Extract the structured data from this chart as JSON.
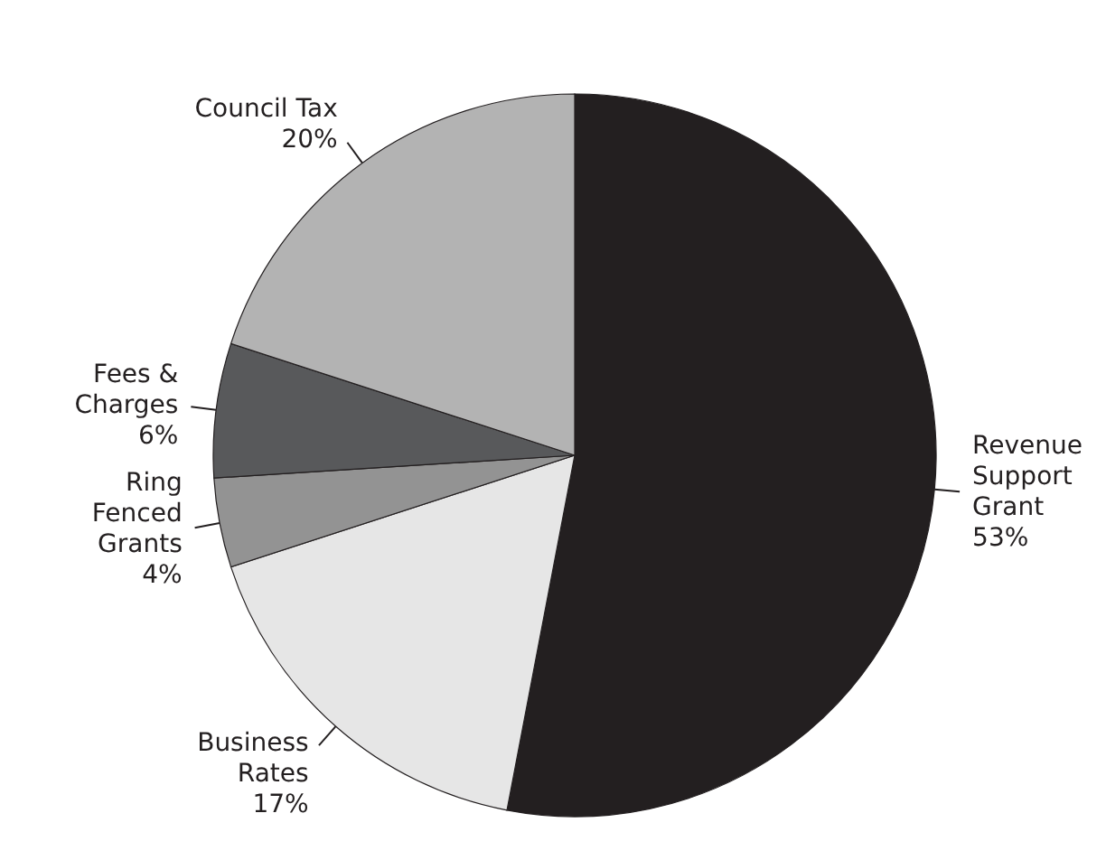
{
  "chart_data": {
    "type": "pie",
    "categories": [
      "Revenue\nSupport\nGrant",
      "Business\nRates",
      "Ring\nFenced\nGrants",
      "Fees &\nCharges",
      "Council Tax"
    ],
    "values": [
      53,
      17,
      4,
      6,
      20
    ],
    "value_labels": [
      "53%",
      "17%",
      "4%",
      "6%",
      "20%"
    ],
    "colors": [
      "#231f20",
      "#e6e6e6",
      "#939393",
      "#58595b",
      "#b3b3b3"
    ]
  }
}
